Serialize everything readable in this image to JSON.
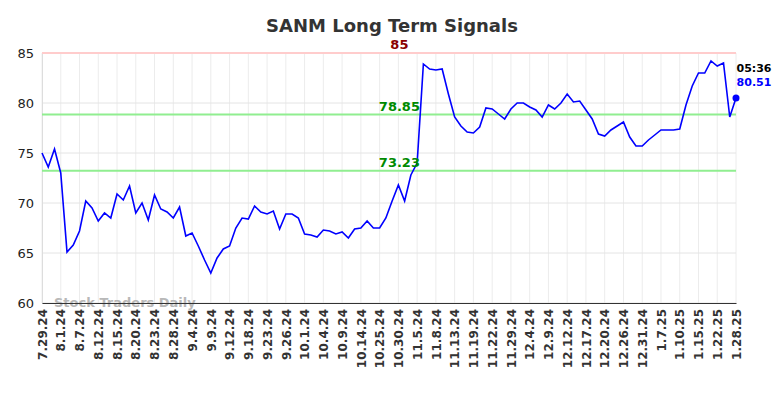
{
  "chart_data": {
    "type": "line",
    "title": "SANM Long Term Signals",
    "watermark": "Stock Traders Daily",
    "time_label": "05:36",
    "categories": [
      "7.29.24",
      null,
      null,
      "8.1.24",
      null,
      null,
      "8.7.24",
      null,
      null,
      "8.12.24",
      null,
      null,
      "8.15.24",
      null,
      null,
      "8.20.24",
      null,
      null,
      "8.23.24",
      null,
      null,
      "8.28.24",
      null,
      null,
      "9.4.24",
      null,
      null,
      "9.9.24",
      null,
      null,
      "9.12.24",
      null,
      null,
      "9.18.24",
      null,
      null,
      "9.23.24",
      null,
      null,
      "9.26.24",
      null,
      null,
      "10.1.24",
      null,
      null,
      "10.4.24",
      null,
      null,
      "10.9.24",
      null,
      null,
      "10.14.24",
      null,
      null,
      "10.25.24",
      null,
      null,
      "10.30.24",
      null,
      null,
      "11.5.24",
      null,
      null,
      "11.8.24",
      null,
      null,
      "11.13.24",
      null,
      null,
      "11.19.24",
      null,
      null,
      "11.22.24",
      null,
      null,
      "11.29.24",
      null,
      null,
      "12.4.24",
      null,
      null,
      "12.9.24",
      null,
      null,
      "12.12.24",
      null,
      null,
      "12.17.24",
      null,
      null,
      "12.20.24",
      null,
      null,
      "12.26.24",
      null,
      null,
      "12.31.24",
      null,
      null,
      "1.7.25",
      null,
      null,
      "1.10.25",
      null,
      null,
      "1.15.25",
      null,
      null,
      "1.22.25",
      null,
      null,
      "1.28.25"
    ],
    "series": [
      {
        "color": "#0000ff",
        "values": [
          75,
          73.6,
          75.4,
          73,
          65.1,
          65.8,
          67.2,
          70.2,
          69.5,
          68.2,
          69,
          68.5,
          70.9,
          70.3,
          71.7,
          69,
          70,
          68.3,
          70.8,
          69.4,
          69.1,
          68.5,
          69.6,
          66.7,
          67,
          65.7,
          64.3,
          63,
          64.5,
          65.4,
          65.7,
          67.5,
          68.5,
          68.4,
          69.7,
          69.1,
          68.9,
          69.2,
          67.4,
          68.9,
          68.9,
          68.5,
          66.9,
          66.8,
          66.6,
          67.3,
          67.2,
          66.9,
          67.1,
          66.5,
          67.4,
          67.5,
          68.2,
          67.5,
          67.5,
          68.5,
          70.2,
          71.8,
          70.2,
          72.8,
          74,
          83.9,
          83.4,
          83.3,
          83.4,
          80.9,
          78.6,
          77.7,
          77.1,
          77,
          77.6,
          79.5,
          79.4,
          78.9,
          78.4,
          79.4,
          80,
          80,
          79.6,
          79.3,
          78.6,
          79.8,
          79.4,
          80,
          80.9,
          80.1,
          80.2,
          79.3,
          78.4,
          76.9,
          76.7,
          77.3,
          77.7,
          78.1,
          76.6,
          75.7,
          75.7,
          76.3,
          76.8,
          77.3,
          77.3,
          77.3,
          77.4,
          79.8,
          81.7,
          83,
          83,
          84.2,
          83.7,
          84,
          78.6,
          80.51
        ]
      }
    ],
    "reference_lines": [
      {
        "value": 85,
        "color": "#ffcccc"
      },
      {
        "value": 78.85,
        "color": "#90ee90"
      },
      {
        "value": 73.23,
        "color": "#90ee90"
      }
    ],
    "ylim": [
      60,
      85
    ],
    "yticks": [
      60,
      65,
      70,
      75,
      80,
      85
    ],
    "grid": true
  }
}
